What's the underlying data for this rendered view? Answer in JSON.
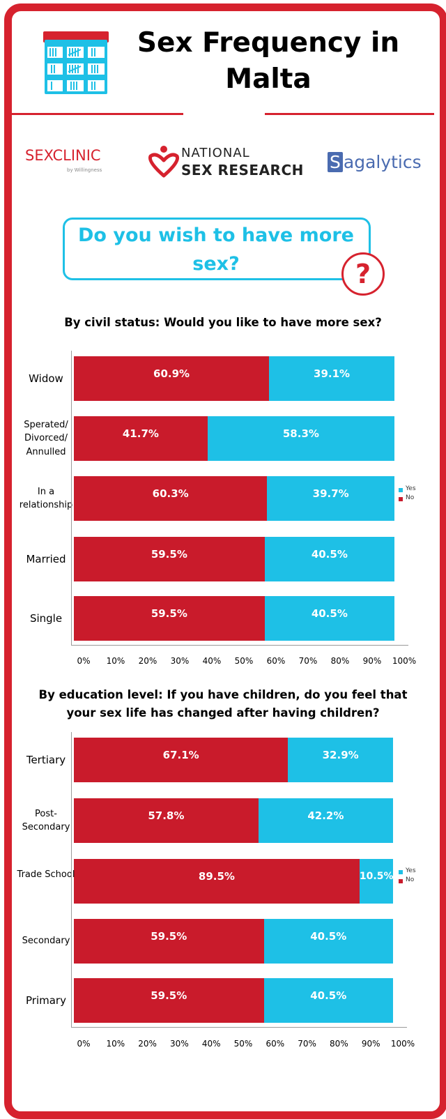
{
  "header": {
    "title": "Sex Frequency in Malta"
  },
  "logos": {
    "sexclinic_a": "SEX",
    "sexclinic_b": "CLINIC",
    "sexclinic_sub": "by Willingness",
    "national_a": "NATIONAL",
    "national_b": "SEX RESEARCH",
    "sagalytics_s": "S",
    "sagalytics_rest": "agalytics"
  },
  "question": {
    "text": "Do you wish to have more sex?",
    "mark": "?"
  },
  "colors": {
    "no": "#c91b2b",
    "yes": "#1ec0e6",
    "frame": "#d6222e"
  },
  "chart_data": [
    {
      "type": "bar",
      "title": "By civil status: Would you like to have more sex?",
      "orientation": "horizontal-stacked",
      "categories": [
        "Widow",
        "Sperated/ Divorced/ Annulled",
        "In a relationship",
        "Married",
        "Single"
      ],
      "series": [
        {
          "name": "No",
          "values": [
            60.9,
            41.7,
            60.3,
            59.5,
            59.5
          ]
        },
        {
          "name": "Yes",
          "values": [
            39.1,
            58.3,
            39.7,
            40.5,
            40.5
          ]
        }
      ],
      "value_labels": {
        "No": [
          "60.9%",
          "41.7%",
          "60.3%",
          "59.5%",
          "59.5%"
        ],
        "Yes": [
          "39.1%",
          "58.3%",
          "39.7%",
          "40.5%",
          "40.5%"
        ]
      },
      "xlim": [
        0,
        100
      ],
      "xticks": [
        "0%",
        "10%",
        "20%",
        "30%",
        "40%",
        "50%",
        "60%",
        "70%",
        "80%",
        "90%",
        "100%"
      ],
      "legend": {
        "placement": "right",
        "entries": [
          "Yes",
          "No"
        ]
      }
    },
    {
      "type": "bar",
      "title": "By education level: If you have children, do you feel that your sex life has changed after having children?",
      "orientation": "horizontal-stacked",
      "categories": [
        "Tertiary",
        "Post-Secondary",
        "Trade School",
        "Secondary",
        "Primary"
      ],
      "series": [
        {
          "name": "No",
          "values": [
            67.1,
            57.8,
            89.5,
            59.5,
            59.5
          ]
        },
        {
          "name": "Yes",
          "values": [
            32.9,
            42.2,
            10.5,
            40.5,
            40.5
          ]
        }
      ],
      "value_labels": {
        "No": [
          "67.1%",
          "57.8%",
          "89.5%",
          "59.5%",
          "59.5%"
        ],
        "Yes": [
          "32.9%",
          "42.2%",
          "10.5%",
          "40.5%",
          "40.5%"
        ]
      },
      "xlim": [
        0,
        100
      ],
      "xticks": [
        "0%",
        "10%",
        "20%",
        "30%",
        "40%",
        "50%",
        "60%",
        "70%",
        "80%",
        "90%",
        "100%"
      ],
      "legend": {
        "placement": "right",
        "entries": [
          "Yes",
          "No"
        ]
      }
    }
  ]
}
